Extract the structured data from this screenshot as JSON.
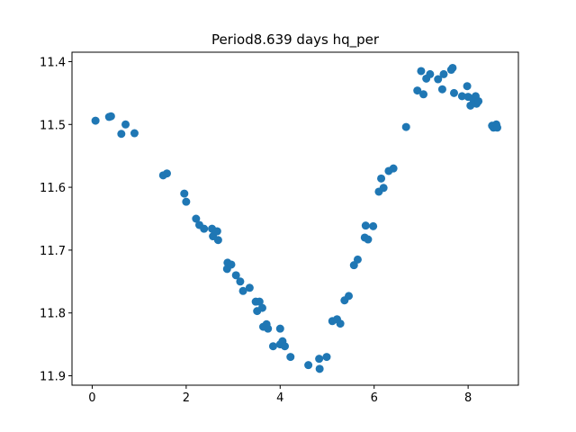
{
  "chart_data": {
    "type": "scatter",
    "title": "Period8.639 days hq_per",
    "xlabel": "",
    "ylabel": "",
    "xlim": [
      -0.43,
      9.07
    ],
    "ylim": [
      11.915,
      11.385
    ],
    "y_inverted": true,
    "grid": false,
    "marker_color": "#1f77b4",
    "x_ticks": [
      0,
      2,
      4,
      6,
      8
    ],
    "x_tick_labels": [
      "0",
      "2",
      "4",
      "6",
      "8"
    ],
    "y_ticks": [
      11.4,
      11.5,
      11.6,
      11.7,
      11.8,
      11.9
    ],
    "y_tick_labels": [
      "11.4",
      "11.5",
      "11.6",
      "11.7",
      "11.8",
      "11.9"
    ],
    "series": [
      {
        "points": [
          [
            0.07,
            11.494
          ],
          [
            0.36,
            11.488
          ],
          [
            0.4,
            11.487
          ],
          [
            0.62,
            11.515
          ],
          [
            0.71,
            11.5
          ],
          [
            0.9,
            11.514
          ],
          [
            1.51,
            11.581
          ],
          [
            1.59,
            11.578
          ],
          [
            1.96,
            11.61
          ],
          [
            2.0,
            11.623
          ],
          [
            2.21,
            11.65
          ],
          [
            2.28,
            11.66
          ],
          [
            2.38,
            11.666
          ],
          [
            2.55,
            11.666
          ],
          [
            2.57,
            11.678
          ],
          [
            2.66,
            11.67
          ],
          [
            2.68,
            11.684
          ],
          [
            2.87,
            11.73
          ],
          [
            2.88,
            11.72
          ],
          [
            2.96,
            11.723
          ],
          [
            3.06,
            11.74
          ],
          [
            3.15,
            11.75
          ],
          [
            3.21,
            11.765
          ],
          [
            3.35,
            11.76
          ],
          [
            3.48,
            11.782
          ],
          [
            3.51,
            11.797
          ],
          [
            3.56,
            11.782
          ],
          [
            3.62,
            11.792
          ],
          [
            3.64,
            11.822
          ],
          [
            3.71,
            11.818
          ],
          [
            3.74,
            11.825
          ],
          [
            3.85,
            11.853
          ],
          [
            4.0,
            11.85
          ],
          [
            4.0,
            11.825
          ],
          [
            4.05,
            11.845
          ],
          [
            4.1,
            11.853
          ],
          [
            4.22,
            11.87
          ],
          [
            4.6,
            11.883
          ],
          [
            4.83,
            11.873
          ],
          [
            4.84,
            11.889
          ],
          [
            4.99,
            11.87
          ],
          [
            5.11,
            11.813
          ],
          [
            5.21,
            11.81
          ],
          [
            5.28,
            11.817
          ],
          [
            5.37,
            11.78
          ],
          [
            5.46,
            11.773
          ],
          [
            5.57,
            11.724
          ],
          [
            5.65,
            11.715
          ],
          [
            5.8,
            11.68
          ],
          [
            5.82,
            11.661
          ],
          [
            5.87,
            11.683
          ],
          [
            5.98,
            11.662
          ],
          [
            6.1,
            11.607
          ],
          [
            6.15,
            11.586
          ],
          [
            6.2,
            11.601
          ],
          [
            6.31,
            11.574
          ],
          [
            6.41,
            11.57
          ],
          [
            6.68,
            11.504
          ],
          [
            6.92,
            11.446
          ],
          [
            7.0,
            11.415
          ],
          [
            7.05,
            11.452
          ],
          [
            7.11,
            11.427
          ],
          [
            7.19,
            11.42
          ],
          [
            7.36,
            11.428
          ],
          [
            7.45,
            11.444
          ],
          [
            7.48,
            11.42
          ],
          [
            7.64,
            11.413
          ],
          [
            7.67,
            11.41
          ],
          [
            7.7,
            11.45
          ],
          [
            7.87,
            11.455
          ],
          [
            7.98,
            11.439
          ],
          [
            8.0,
            11.456
          ],
          [
            8.05,
            11.47
          ],
          [
            8.1,
            11.459
          ],
          [
            8.16,
            11.455
          ],
          [
            8.18,
            11.467
          ],
          [
            8.22,
            11.463
          ],
          [
            8.51,
            11.502
          ],
          [
            8.54,
            11.505
          ],
          [
            8.6,
            11.5
          ],
          [
            8.62,
            11.505
          ]
        ]
      }
    ]
  }
}
